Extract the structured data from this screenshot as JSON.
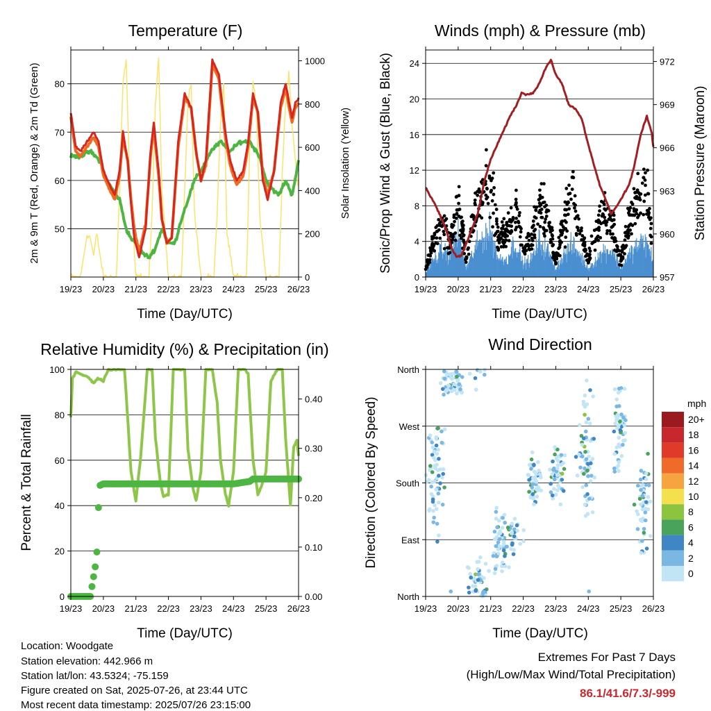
{
  "x_tick_labels": [
    "19/23",
    "20/23",
    "21/23",
    "22/23",
    "23/23",
    "24/23",
    "25/23",
    "26/23"
  ],
  "chart_data": [
    {
      "type": "line",
      "title": "Temperature (F)",
      "xlabel": "Time (Day/UTC)",
      "ylabel": "2m & 9m T (Red, Orange) & 2m Td (Green)",
      "ylabel_right": "Solar Insolation (Yellow)",
      "x_unit": "days since 19/23",
      "xlim": [
        0,
        7
      ],
      "ylim": [
        40,
        87
      ],
      "yticks": [
        50,
        60,
        70,
        80
      ],
      "ylim_right": [
        0,
        1050
      ],
      "yticks_right": [
        0,
        200,
        400,
        600,
        800,
        1000
      ],
      "grid": "horizontal",
      "colors": {
        "t2": "#d7261e",
        "t9": "#f06a20",
        "td": "#4db541",
        "solar": "#fbe36b"
      },
      "series": [
        {
          "name": "2m T",
          "x": [
            0,
            0.15,
            0.3,
            0.5,
            0.7,
            0.85,
            1.0,
            1.2,
            1.35,
            1.5,
            1.6,
            1.75,
            1.85,
            1.95,
            2.1,
            2.3,
            2.45,
            2.55,
            2.7,
            2.8,
            2.95,
            3.1,
            3.3,
            3.5,
            3.7,
            3.85,
            4.0,
            4.15,
            4.35,
            4.55,
            4.75,
            4.9,
            5.1,
            5.3,
            5.45,
            5.6,
            5.75,
            5.9,
            6.05,
            6.25,
            6.45,
            6.6,
            6.8,
            6.9,
            7.0
          ],
          "values": [
            74,
            67,
            66,
            68,
            70,
            68,
            62,
            59,
            57,
            62,
            70,
            64,
            55,
            48,
            44,
            50,
            66,
            72,
            62,
            52,
            47,
            48,
            68,
            78,
            75,
            66,
            60,
            64,
            85,
            82,
            70,
            64,
            60,
            62,
            68,
            78,
            74,
            60,
            56,
            62,
            76,
            80,
            73,
            76,
            77
          ]
        },
        {
          "name": "9m T",
          "x": [
            0,
            0.15,
            0.3,
            0.5,
            0.7,
            0.85,
            1.0,
            1.2,
            1.35,
            1.5,
            1.6,
            1.75,
            1.85,
            1.95,
            2.1,
            2.3,
            2.45,
            2.55,
            2.7,
            2.8,
            2.95,
            3.1,
            3.3,
            3.5,
            3.7,
            3.85,
            4.0,
            4.15,
            4.35,
            4.55,
            4.75,
            4.9,
            5.1,
            5.3,
            5.45,
            5.6,
            5.75,
            5.9,
            6.05,
            6.25,
            6.45,
            6.6,
            6.8,
            6.9,
            7.0
          ],
          "values": [
            73,
            66,
            65,
            67,
            69,
            67,
            61,
            58,
            56,
            61,
            69,
            64,
            56,
            50,
            45,
            51,
            65,
            71,
            61,
            52,
            47,
            48,
            67,
            77,
            75,
            66,
            60,
            63,
            84,
            81,
            69,
            63,
            59,
            61,
            67,
            77,
            74,
            61,
            57,
            62,
            75,
            79,
            72,
            75,
            76
          ]
        },
        {
          "name": "2m Td",
          "x": [
            0,
            0.3,
            0.6,
            0.9,
            1.1,
            1.3,
            1.5,
            1.7,
            1.85,
            2.0,
            2.2,
            2.4,
            2.6,
            2.8,
            3.0,
            3.2,
            3.4,
            3.6,
            3.8,
            4.0,
            4.3,
            4.6,
            4.9,
            5.2,
            5.5,
            5.8,
            6.0,
            6.2,
            6.4,
            6.6,
            6.8,
            7.0
          ],
          "values": [
            65,
            65,
            66,
            64,
            60,
            58,
            56,
            50,
            48,
            47,
            45,
            44,
            46,
            50,
            47,
            47,
            52,
            56,
            60,
            62,
            66,
            68,
            66,
            68,
            68,
            65,
            60,
            58,
            57,
            60,
            57,
            64
          ]
        },
        {
          "name": "Solar",
          "x": [
            0,
            0.3,
            0.5,
            0.6,
            0.7,
            0.8,
            1.0,
            1.4,
            1.5,
            1.6,
            1.7,
            1.8,
            2.0,
            2.4,
            2.5,
            2.6,
            2.7,
            2.8,
            3.0,
            3.4,
            3.5,
            3.6,
            3.7,
            3.8,
            4.0,
            4.4,
            4.5,
            4.6,
            4.7,
            4.8,
            5.0,
            5.4,
            5.5,
            5.6,
            5.7,
            5.8,
            6.0,
            6.4,
            6.5,
            6.6,
            6.7,
            6.8,
            7.0
          ],
          "values": [
            0,
            0,
            200,
            180,
            100,
            200,
            0,
            0,
            400,
            900,
            1000,
            500,
            0,
            0,
            300,
            800,
            1000,
            400,
            0,
            0,
            400,
            800,
            900,
            300,
            0,
            0,
            300,
            700,
            900,
            200,
            0,
            0,
            600,
            900,
            800,
            300,
            0,
            0,
            500,
            800,
            950,
            700,
            400
          ]
        }
      ]
    },
    {
      "type": "line",
      "title": "Winds (mph) & Pressure (mb)",
      "xlabel": "Time (Day/UTC)",
      "ylabel": "Sonic/Prop Wind & Gust (Blue, Black)",
      "ylabel_right": "Station Pressure (Maroon)",
      "x_unit": "days since 19/23",
      "xlim": [
        0,
        7
      ],
      "ylim": [
        0,
        25.5
      ],
      "yticks": [
        0,
        4,
        8,
        12,
        16,
        20,
        24
      ],
      "ylim_right": [
        957,
        972.8
      ],
      "yticks_right": [
        957,
        960,
        963,
        966,
        969,
        972
      ],
      "grid": "horizontal",
      "colors": {
        "wind": "#4a8fd0",
        "gust": "#000000",
        "pressure": "#a11e23"
      },
      "series": [
        {
          "name": "Pressure",
          "x": [
            0,
            0.3,
            0.6,
            0.8,
            0.95,
            1.1,
            1.3,
            1.6,
            1.8,
            2.0,
            2.2,
            2.4,
            2.6,
            2.8,
            2.95,
            3.1,
            3.3,
            3.5,
            3.7,
            3.85,
            4.0,
            4.2,
            4.4,
            4.6,
            4.8,
            5.0,
            5.2,
            5.35,
            5.5,
            5.7,
            5.9,
            6.1,
            6.25,
            6.4,
            6.6,
            6.8,
            6.95,
            7.0
          ],
          "values": [
            963.2,
            962,
            960.5,
            959,
            958.4,
            958.5,
            959.6,
            961.4,
            963.6,
            965.2,
            966.2,
            967.2,
            968.2,
            969,
            969.8,
            969.7,
            969.8,
            970.5,
            971.6,
            972.1,
            971.1,
            970.4,
            969,
            968.7,
            968,
            966.2,
            964.6,
            963.4,
            962.6,
            961.4,
            962,
            962.8,
            963.4,
            964.6,
            966.8,
            968.2,
            967,
            966
          ]
        },
        {
          "name": "Wind",
          "x": [
            0,
            0.25,
            0.5,
            0.75,
            1.0,
            1.25,
            1.5,
            1.75,
            2.0,
            2.25,
            2.5,
            2.75,
            3.0,
            3.25,
            3.5,
            3.75,
            4.0,
            4.25,
            4.5,
            4.75,
            5.0,
            5.25,
            5.5,
            5.75,
            6.0,
            6.25,
            6.5,
            6.75,
            7.0
          ],
          "values": [
            0.5,
            2,
            3,
            2.5,
            5,
            1,
            3,
            4.5,
            5,
            2,
            2,
            4,
            1.5,
            2,
            4,
            3,
            1,
            2.5,
            3.5,
            2.5,
            1,
            2,
            3,
            3,
            1,
            2.5,
            3.5,
            4,
            2
          ]
        },
        {
          "name": "Gust",
          "x": [
            0,
            0.25,
            0.5,
            0.75,
            1.0,
            1.25,
            1.5,
            1.75,
            2.0,
            2.25,
            2.5,
            2.75,
            3.0,
            3.25,
            3.5,
            3.75,
            4.0,
            4.25,
            4.5,
            4.75,
            5.0,
            5.25,
            5.5,
            5.75,
            6.0,
            6.25,
            6.5,
            6.75,
            7.0
          ],
          "values": [
            1,
            4,
            6,
            4,
            8,
            2,
            7,
            10,
            11,
            4,
            5,
            8,
            3,
            4,
            8,
            7,
            2,
            6,
            9,
            5,
            2,
            5,
            8,
            6,
            2,
            6,
            9,
            10,
            4
          ]
        }
      ]
    },
    {
      "type": "line",
      "title": "Relative Humidity (%) & Precipitation (in)",
      "xlabel": "Time (Day/UTC)",
      "ylabel": "Percent & Total Rainfall",
      "x_unit": "days since 19/23",
      "xlim": [
        0,
        7
      ],
      "ylim": [
        0,
        100
      ],
      "yticks": [
        0,
        20,
        40,
        60,
        80,
        100
      ],
      "ylim_right": [
        0,
        0.46
      ],
      "yticks_right": [
        0.0,
        0.1,
        0.2,
        0.3,
        0.4
      ],
      "ytick_labels_right": [
        "0.00",
        "0.10",
        "0.20",
        "0.30",
        "0.40"
      ],
      "grid": "horizontal",
      "colors": {
        "rh": "#8ec64a",
        "precip": "#4db541"
      },
      "series": [
        {
          "name": "RH",
          "x": [
            0,
            0.05,
            0.15,
            0.3,
            0.5,
            0.7,
            0.85,
            1.0,
            1.15,
            1.3,
            1.5,
            1.65,
            1.75,
            1.85,
            2.0,
            2.15,
            2.35,
            2.5,
            2.6,
            2.75,
            2.85,
            3.0,
            3.15,
            3.35,
            3.5,
            3.6,
            3.75,
            3.85,
            4.0,
            4.15,
            4.35,
            4.5,
            4.6,
            4.75,
            4.85,
            5.0,
            5.15,
            5.35,
            5.45,
            5.6,
            5.75,
            5.85,
            6.0,
            6.15,
            6.35,
            6.5,
            6.6,
            6.75,
            6.85,
            6.95,
            7.0
          ],
          "values": [
            79,
            96,
            99,
            98,
            97,
            94,
            96,
            95,
            100,
            100,
            100,
            100,
            78,
            55,
            42,
            62,
            100,
            100,
            70,
            50,
            44,
            45,
            100,
            100,
            100,
            65,
            48,
            42,
            55,
            100,
            100,
            85,
            60,
            45,
            40,
            55,
            100,
            100,
            98,
            60,
            45,
            48,
            55,
            95,
            100,
            100,
            70,
            40,
            66,
            69,
            62
          ]
        },
        {
          "name": "Precipitation",
          "x": [
            0,
            0.4,
            0.6,
            0.65,
            0.7,
            0.75,
            0.8,
            0.82,
            0.85,
            0.9,
            1.0,
            1.5,
            2.0,
            2.5,
            3.0,
            3.5,
            4.0,
            4.5,
            5.0,
            5.5,
            5.6,
            6.0,
            6.5,
            7.0
          ],
          "values": [
            0,
            0,
            0,
            0.02,
            0.04,
            0.06,
            0.09,
            0.14,
            0.18,
            0.225,
            0.228,
            0.228,
            0.228,
            0.228,
            0.228,
            0.228,
            0.228,
            0.228,
            0.228,
            0.233,
            0.238,
            0.238,
            0.238,
            0.238
          ]
        }
      ]
    },
    {
      "type": "scatter",
      "title": "Wind Direction",
      "xlabel": "Time (Day/UTC)",
      "ylabel": "Direction (Colored By Speed)",
      "x_unit": "days since 19/23",
      "xlim": [
        0,
        7
      ],
      "ylim": [
        0,
        360
      ],
      "ytick_labels": [
        "North",
        "East",
        "South",
        "West",
        "North"
      ],
      "grid": "horizontal",
      "colorbar": {
        "title": "mph",
        "labels": [
          "20+",
          "18",
          "16",
          "14",
          "12",
          "10",
          "8",
          "6",
          "4",
          "2",
          "0"
        ],
        "colors": [
          "#9a1a1e",
          "#c8272e",
          "#e03a2a",
          "#f06a2a",
          "#f7a440",
          "#f4e04d",
          "#8cc43f",
          "#4aa35a",
          "#3f86c5",
          "#7ab8e3",
          "#c2e5f5"
        ]
      },
      "clusters": [
        {
          "x": 0.3,
          "dir": 195,
          "spread": 0.3,
          "dspread": 90,
          "n": 70
        },
        {
          "x": 0.85,
          "dir": 340,
          "spread": 0.35,
          "dspread": 30,
          "n": 60
        },
        {
          "x": 1.6,
          "dir": 20,
          "spread": 0.3,
          "dspread": 40,
          "n": 50
        },
        {
          "x": 2.3,
          "dir": 85,
          "spread": 0.25,
          "dspread": 45,
          "n": 55
        },
        {
          "x": 3.35,
          "dir": 185,
          "spread": 0.2,
          "dspread": 50,
          "n": 55
        },
        {
          "x": 4.05,
          "dir": 195,
          "spread": 0.25,
          "dspread": 45,
          "n": 60
        },
        {
          "x": 4.95,
          "dir": 230,
          "spread": 0.25,
          "dspread": 110,
          "n": 70
        },
        {
          "x": 5.95,
          "dir": 260,
          "spread": 0.2,
          "dspread": 80,
          "n": 55
        },
        {
          "x": 6.7,
          "dir": 145,
          "spread": 0.2,
          "dspread": 70,
          "n": 55
        },
        {
          "x": 1.8,
          "dir": 5,
          "spread": 0.05,
          "dspread": 6,
          "n": 12
        },
        {
          "x": 2.7,
          "dir": 100,
          "spread": 0.3,
          "dspread": 30,
          "n": 30
        }
      ]
    }
  ],
  "footer": {
    "location": "Location: Woodgate",
    "elevation": "Station elevation: 442.966 m",
    "latlon": "Station lat/lon: 43.5324; -75.159",
    "created": "Figure created on Sat, 2025-07-26, at 23:44 UTC",
    "recent": "Most recent data timestamp: 2025/07/26 23:15:00"
  },
  "extremes": {
    "heading": "Extremes For Past 7 Days",
    "subheading": "(High/Low/Max Wind/Total Precipitation)",
    "values": "86.1/41.6/7.3/-999"
  }
}
